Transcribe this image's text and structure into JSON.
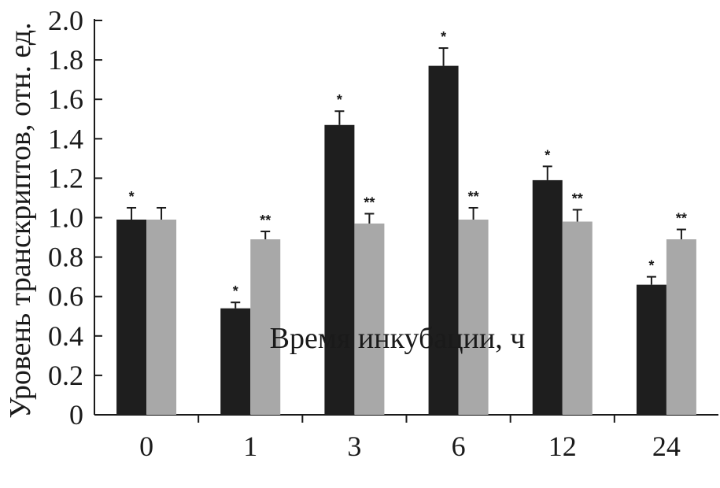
{
  "chart_data": {
    "type": "bar",
    "title": "",
    "xlabel": "Время инкубации, ч",
    "ylabel": "Уровень транскриптов, отн. ед.",
    "ylim": [
      0,
      2.0
    ],
    "yticks": [
      "0",
      "0.2",
      "0.4",
      "0.6",
      "0.8",
      "1.0",
      "1.2",
      "1.4",
      "1.6",
      "1.8",
      "2.0"
    ],
    "categories": [
      "0",
      "1",
      "3",
      "6",
      "12",
      "24"
    ],
    "grid": false,
    "legend": "none",
    "series": [
      {
        "color": "#1e1e1e",
        "values": [
          0.99,
          0.54,
          1.47,
          1.77,
          1.19,
          0.66
        ],
        "errors": [
          0.06,
          0.03,
          0.07,
          0.09,
          0.07,
          0.04
        ],
        "annotations": [
          "*",
          "*",
          "*",
          "*",
          "*",
          "*"
        ]
      },
      {
        "color": "#a8a8a8",
        "values": [
          0.99,
          0.89,
          0.97,
          0.99,
          0.98,
          0.89
        ],
        "errors": [
          0.06,
          0.04,
          0.05,
          0.06,
          0.06,
          0.05
        ],
        "annotations": [
          "",
          "**",
          "**",
          "**",
          "**",
          "**"
        ]
      }
    ]
  }
}
